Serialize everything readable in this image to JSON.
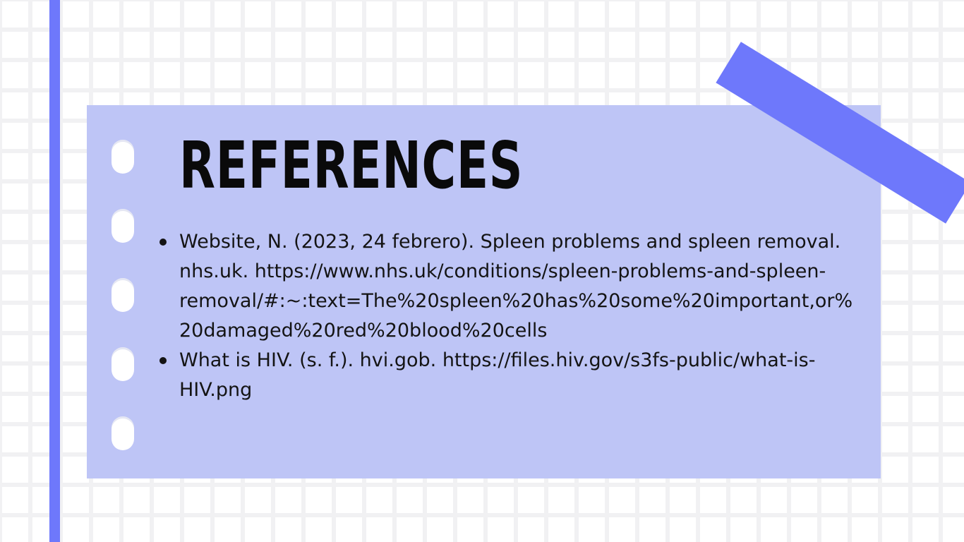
{
  "slide": {
    "title": "REFERENCES",
    "references": [
      "Website, N. (2023, 24 febrero). Spleen problems and spleen removal. nhs.uk. https://www.nhs.uk/conditions/spleen-problems-and-spleen-removal/#:~:text=The%20spleen%20has%20some%20important,or%20damaged%20red%20blood%20cells",
      "What is HIV. (s. f.). hvi.gob. https://files.hiv.gov/s3fs-public/what-is-HIV.png"
    ]
  },
  "colors": {
    "accent": "#6e78fb",
    "card": "#bec5f6",
    "background": "#ffffff"
  }
}
